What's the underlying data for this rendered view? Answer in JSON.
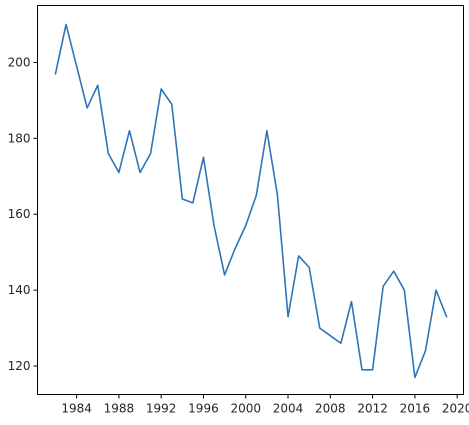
{
  "chart_data": {
    "type": "line",
    "title": "",
    "xlabel": "",
    "ylabel": "",
    "xlim": [
      1980.3,
      2020.6
    ],
    "ylim": [
      112.5,
      215.0
    ],
    "xticks": [
      1984,
      1988,
      1992,
      1996,
      2000,
      2004,
      2008,
      2012,
      2016,
      2020
    ],
    "yticks": [
      120,
      140,
      160,
      180,
      200
    ],
    "grid": false,
    "line_color": "#2f74b5",
    "series": [
      {
        "name": "",
        "x": [
          1982,
          1983,
          1984,
          1985,
          1986,
          1987,
          1988,
          1989,
          1990,
          1991,
          1992,
          1993,
          1994,
          1995,
          1996,
          1997,
          1998,
          1999,
          2000,
          2001,
          2002,
          2003,
          2004,
          2005,
          2006,
          2007,
          2008,
          2009,
          2010,
          2011,
          2012,
          2013,
          2014,
          2015,
          2016,
          2017,
          2018,
          2019
        ],
        "values": [
          197,
          210,
          199,
          188,
          194,
          176,
          171,
          182,
          171,
          176,
          193,
          189,
          164,
          163,
          175,
          157,
          144,
          151,
          157,
          165,
          182,
          165,
          133,
          149,
          146,
          130,
          128,
          126,
          137,
          119,
          119,
          141,
          145,
          140,
          117,
          124,
          140,
          133
        ]
      }
    ]
  }
}
